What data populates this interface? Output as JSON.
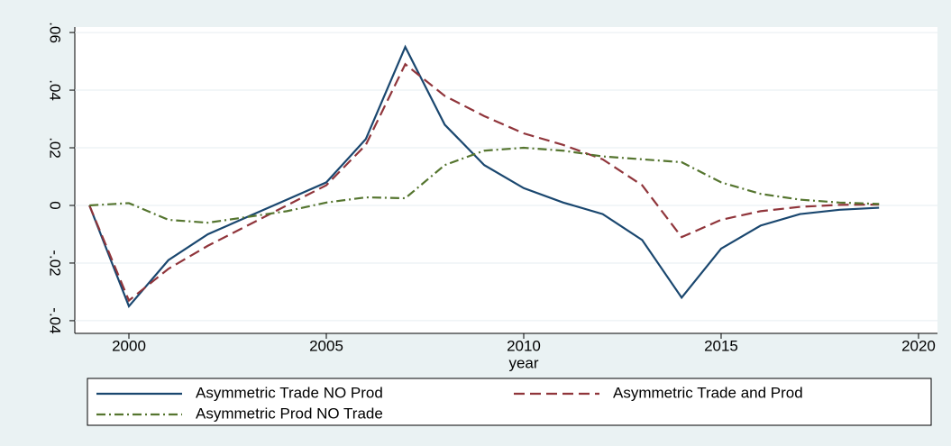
{
  "chart_data": {
    "type": "line",
    "x_label": "year",
    "x": [
      1999,
      2000,
      2001,
      2002,
      2003,
      2004,
      2005,
      2006,
      2007,
      2008,
      2009,
      2010,
      2011,
      2012,
      2013,
      2014,
      2015,
      2016,
      2017,
      2018,
      2019
    ],
    "series": [
      {
        "name": "Asymmetric Trade NO Prod",
        "color": "#1a476f",
        "dash": "solid",
        "values": [
          0,
          -0.035,
          -0.019,
          -0.01,
          -0.004,
          0.002,
          0.008,
          0.023,
          0.055,
          0.028,
          0.014,
          0.006,
          0.001,
          -0.003,
          -0.012,
          -0.032,
          -0.015,
          -0.007,
          -0.003,
          -0.0015,
          -0.0008
        ]
      },
      {
        "name": "Asymmetric Trade and Prod",
        "color": "#90353b",
        "dash": "dash",
        "values": [
          0,
          -0.033,
          -0.022,
          -0.014,
          -0.007,
          0.0,
          0.007,
          0.021,
          0.049,
          0.038,
          0.031,
          0.025,
          0.021,
          0.016,
          0.007,
          -0.011,
          -0.005,
          -0.002,
          -0.0005,
          0.0002,
          0.0003
        ]
      },
      {
        "name": "Asymmetric Prod NO Trade",
        "color": "#55752f",
        "dash": "dashdot",
        "values": [
          0,
          0.0008,
          -0.005,
          -0.006,
          -0.004,
          -0.002,
          0.001,
          0.0028,
          0.0025,
          0.014,
          0.019,
          0.02,
          0.019,
          0.017,
          0.016,
          0.015,
          0.008,
          0.004,
          0.002,
          0.001,
          0.0005
        ]
      }
    ],
    "xlim": [
      1998.63,
      2020.48
    ],
    "xticks": [
      2000,
      2005,
      2010,
      2015,
      2020
    ],
    "ylim": [
      -0.0444,
      0.0619
    ],
    "yticks": [
      {
        "value": -0.04,
        "label": "-.04"
      },
      {
        "value": -0.02,
        "label": "-.02"
      },
      {
        "value": 0,
        "label": "0"
      },
      {
        "value": 0.02,
        "label": ".02"
      },
      {
        "value": 0.04,
        "label": ".04"
      },
      {
        "value": 0.06,
        "label": ".06"
      }
    ],
    "grid": true
  }
}
